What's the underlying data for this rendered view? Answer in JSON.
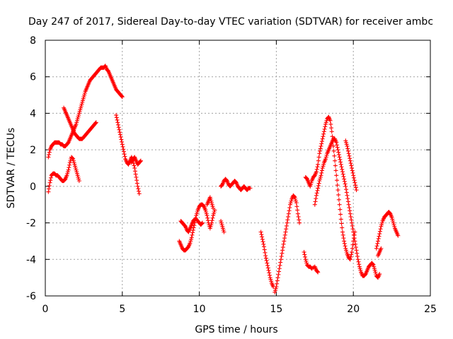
{
  "chart_data": {
    "type": "scatter",
    "title": "Day 247 of 2017, Sidereal Day-to-day VTEC variation (SDTVAR) for receiver ambc",
    "xlabel": "GPS time / hours",
    "ylabel": "SDTVAR / TECUs",
    "xlim": [
      0,
      25
    ],
    "ylim": [
      -6,
      8
    ],
    "xticks": [
      0,
      5,
      10,
      15,
      20,
      25
    ],
    "yticks": [
      -6,
      -4,
      -2,
      0,
      2,
      4,
      6,
      8
    ],
    "grid": true,
    "marker": "+",
    "color": "#ff0000",
    "series": [
      {
        "name": "seg1",
        "x": [
          0.2,
          0.3,
          0.4,
          0.5,
          0.6,
          0.7,
          0.8,
          0.9,
          1.0,
          1.1,
          1.2,
          1.3,
          1.4,
          1.5,
          1.6,
          1.7,
          1.8,
          1.9,
          2.0,
          2.1,
          2.2,
          2.3,
          2.4,
          2.5,
          2.6,
          2.7,
          2.8,
          2.9,
          3.0,
          3.1,
          3.2,
          3.3,
          3.4,
          3.5,
          3.6,
          3.7,
          3.8,
          3.9,
          4.0,
          4.1,
          4.2,
          4.3,
          4.4,
          4.5,
          4.6,
          4.7,
          4.8,
          4.9,
          5.0
        ],
        "y": [
          1.6,
          2.0,
          2.2,
          2.3,
          2.4,
          2.4,
          2.4,
          2.4,
          2.3,
          2.3,
          2.2,
          2.2,
          2.3,
          2.4,
          2.6,
          2.8,
          3.0,
          3.2,
          3.4,
          3.7,
          4.0,
          4.3,
          4.6,
          4.9,
          5.2,
          5.4,
          5.6,
          5.8,
          5.9,
          6.0,
          6.1,
          6.2,
          6.3,
          6.4,
          6.5,
          6.5,
          6.5,
          6.6,
          6.4,
          6.3,
          6.1,
          5.9,
          5.7,
          5.5,
          5.3,
          5.2,
          5.1,
          5.0,
          4.9
        ]
      },
      {
        "name": "seg2",
        "x": [
          0.2,
          0.3,
          0.4,
          0.5,
          0.6,
          0.7,
          0.8,
          0.9,
          1.0,
          1.1,
          1.2,
          1.3,
          1.4,
          1.5,
          1.6,
          1.7,
          1.8,
          1.9,
          2.0,
          2.1,
          2.2
        ],
        "y": [
          -0.3,
          0.2,
          0.6,
          0.7,
          0.7,
          0.6,
          0.6,
          0.5,
          0.4,
          0.3,
          0.3,
          0.4,
          0.6,
          0.9,
          1.3,
          1.6,
          1.5,
          1.2,
          0.9,
          0.6,
          0.3
        ]
      },
      {
        "name": "seg3",
        "x": [
          1.2,
          1.3,
          1.4,
          1.5,
          1.6,
          1.7,
          1.8,
          1.9,
          2.0,
          2.1,
          2.2,
          2.3,
          2.4,
          2.5,
          2.6,
          2.7,
          2.8,
          2.9,
          3.0,
          3.1,
          3.2,
          3.3
        ],
        "y": [
          4.3,
          4.1,
          3.9,
          3.7,
          3.5,
          3.3,
          3.1,
          2.9,
          2.8,
          2.7,
          2.6,
          2.6,
          2.6,
          2.7,
          2.8,
          2.9,
          3.0,
          3.1,
          3.2,
          3.3,
          3.4,
          3.5
        ]
      },
      {
        "name": "seg4",
        "x": [
          4.6,
          4.7,
          4.8,
          4.9,
          5.0,
          5.1,
          5.2,
          5.3,
          5.4,
          5.5,
          5.6,
          5.7,
          5.8,
          5.9,
          6.0,
          6.1
        ],
        "y": [
          3.9,
          3.5,
          3.1,
          2.7,
          2.3,
          1.9,
          1.5,
          1.3,
          1.2,
          1.4,
          1.6,
          1.4,
          1.0,
          0.5,
          0.0,
          -0.4
        ]
      },
      {
        "name": "seg5",
        "x": [
          5.6,
          5.7,
          5.8,
          5.9,
          6.0,
          6.1,
          6.2
        ],
        "y": [
          1.3,
          1.5,
          1.6,
          1.4,
          1.2,
          1.3,
          1.4
        ]
      },
      {
        "name": "seg6",
        "x": [
          8.7,
          8.8,
          8.9,
          9.0,
          9.1,
          9.2,
          9.3,
          9.4,
          9.5,
          9.6,
          9.7,
          9.8,
          9.9,
          10.0,
          10.1,
          10.2,
          10.3,
          10.4,
          10.5,
          10.6,
          10.7,
          10.8,
          10.9,
          11.0
        ],
        "y": [
          -3.0,
          -3.2,
          -3.4,
          -3.5,
          -3.5,
          -3.4,
          -3.3,
          -3.1,
          -2.8,
          -2.4,
          -2.0,
          -1.6,
          -1.3,
          -1.1,
          -1.0,
          -1.0,
          -1.1,
          -1.3,
          -1.6,
          -2.0,
          -2.3,
          -2.0,
          -1.6,
          -1.3
        ]
      },
      {
        "name": "seg7",
        "x": [
          8.8,
          8.9,
          9.0,
          9.1,
          9.2,
          9.3,
          9.4,
          9.5,
          9.6,
          9.7,
          9.8,
          9.9,
          10.0,
          10.1,
          10.2
        ],
        "y": [
          -1.9,
          -2.0,
          -2.1,
          -2.2,
          -2.4,
          -2.5,
          -2.3,
          -2.1,
          -1.9,
          -1.8,
          -1.8,
          -1.9,
          -2.0,
          -2.1,
          -2.0
        ]
      },
      {
        "name": "seg8",
        "x": [
          10.5,
          10.6,
          10.7,
          10.8,
          10.9
        ],
        "y": [
          -1.0,
          -0.8,
          -0.6,
          -0.9,
          -1.2
        ]
      },
      {
        "name": "seg9",
        "x": [
          11.4,
          11.5,
          11.6,
          11.7,
          11.8,
          11.9,
          12.0,
          12.1,
          12.2,
          12.3,
          12.4,
          12.5,
          12.6,
          12.7,
          12.8,
          12.9,
          13.0,
          13.1,
          13.2,
          13.3
        ],
        "y": [
          0.0,
          0.1,
          0.3,
          0.4,
          0.3,
          0.1,
          0.0,
          0.1,
          0.2,
          0.3,
          0.2,
          0.0,
          -0.1,
          -0.2,
          -0.1,
          0.0,
          -0.1,
          -0.2,
          -0.1,
          -0.1
        ]
      },
      {
        "name": "seg10",
        "x": [
          11.4,
          11.5,
          11.6
        ],
        "y": [
          -1.9,
          -2.2,
          -2.5
        ]
      },
      {
        "name": "seg11",
        "x": [
          14.0,
          14.1,
          14.2,
          14.3,
          14.4,
          14.5,
          14.6,
          14.7,
          14.8
        ],
        "y": [
          -2.5,
          -2.9,
          -3.3,
          -3.8,
          -4.2,
          -4.6,
          -5.0,
          -5.3,
          -5.5
        ]
      },
      {
        "name": "seg12",
        "x": [
          14.9,
          15.0,
          15.1,
          15.2,
          15.3,
          15.4,
          15.5,
          15.6,
          15.7,
          15.8,
          15.9,
          16.0,
          16.1,
          16.2,
          16.3,
          16.4,
          16.5
        ],
        "y": [
          -5.8,
          -5.5,
          -5.0,
          -4.5,
          -4.0,
          -3.5,
          -3.0,
          -2.5,
          -2.0,
          -1.5,
          -1.0,
          -0.7,
          -0.5,
          -0.6,
          -0.9,
          -1.5,
          -2.0
        ]
      },
      {
        "name": "seg13",
        "x": [
          16.9,
          17.0,
          17.1,
          17.2,
          17.3,
          17.4,
          17.5,
          17.6,
          17.7,
          17.8,
          17.9,
          18.0,
          18.1,
          18.2,
          18.3,
          18.4,
          18.5,
          18.6,
          18.7,
          18.8,
          18.9,
          19.0,
          19.1,
          19.2,
          19.3,
          19.4,
          19.5,
          19.6,
          19.7,
          19.8,
          19.9,
          20.0,
          20.1
        ],
        "y": [
          0.5,
          0.4,
          0.2,
          0.0,
          0.3,
          0.5,
          0.6,
          0.8,
          1.2,
          1.8,
          2.2,
          2.6,
          3.0,
          3.4,
          3.7,
          3.8,
          3.6,
          3.0,
          2.2,
          1.4,
          0.6,
          -0.2,
          -1.0,
          -1.8,
          -2.5,
          -3.0,
          -3.4,
          -3.7,
          -3.9,
          -4.0,
          -3.6,
          -3.0,
          -2.5
        ]
      },
      {
        "name": "seg14",
        "x": [
          16.8,
          16.9,
          17.0,
          17.1,
          17.2,
          17.3,
          17.5,
          17.6,
          17.7
        ],
        "y": [
          -3.6,
          -4.0,
          -4.3,
          -4.4,
          -4.4,
          -4.5,
          -4.4,
          -4.6,
          -4.7
        ]
      },
      {
        "name": "seg15",
        "x": [
          17.5,
          17.6,
          17.7,
          17.8,
          17.9,
          18.0,
          18.1,
          18.2,
          18.3,
          18.4,
          18.5,
          18.6,
          18.7,
          18.8,
          18.9,
          19.0,
          19.1,
          19.2,
          19.3,
          19.4,
          19.5,
          19.6,
          19.7,
          19.8,
          19.9,
          20.0,
          20.1,
          20.2,
          20.3,
          20.4,
          20.5,
          20.6,
          20.7,
          20.8,
          20.9,
          21.0,
          21.1,
          21.2,
          21.3,
          21.4,
          21.5,
          21.6,
          21.7
        ],
        "y": [
          -1.0,
          -0.5,
          -0.1,
          0.3,
          0.6,
          1.0,
          1.3,
          1.5,
          1.8,
          2.0,
          2.2,
          2.4,
          2.6,
          2.6,
          2.4,
          2.0,
          1.6,
          1.2,
          0.8,
          0.4,
          0.0,
          -0.5,
          -1.0,
          -1.5,
          -2.0,
          -2.5,
          -3.0,
          -3.5,
          -4.0,
          -4.4,
          -4.7,
          -4.9,
          -4.9,
          -4.8,
          -4.6,
          -4.4,
          -4.3,
          -4.2,
          -4.3,
          -4.6,
          -4.9,
          -5.0,
          -4.8
        ]
      },
      {
        "name": "seg16",
        "x": [
          19.5,
          19.6,
          19.7,
          19.8,
          19.9,
          20.0,
          20.1,
          20.2
        ],
        "y": [
          2.5,
          2.2,
          1.8,
          1.4,
          1.0,
          0.6,
          0.2,
          -0.2
        ]
      },
      {
        "name": "seg17",
        "x": [
          21.5,
          21.6,
          21.7,
          21.8,
          21.9,
          22.0,
          22.1,
          22.2,
          22.3,
          22.4,
          22.5,
          22.6,
          22.7,
          22.8,
          22.9
        ],
        "y": [
          -3.4,
          -3.0,
          -2.6,
          -2.2,
          -1.9,
          -1.7,
          -1.6,
          -1.5,
          -1.4,
          -1.5,
          -1.7,
          -2.0,
          -2.3,
          -2.5,
          -2.7
        ]
      },
      {
        "name": "seg18",
        "x": [
          21.6,
          21.7,
          21.8
        ],
        "y": [
          -3.8,
          -3.6,
          -3.4
        ]
      }
    ]
  }
}
